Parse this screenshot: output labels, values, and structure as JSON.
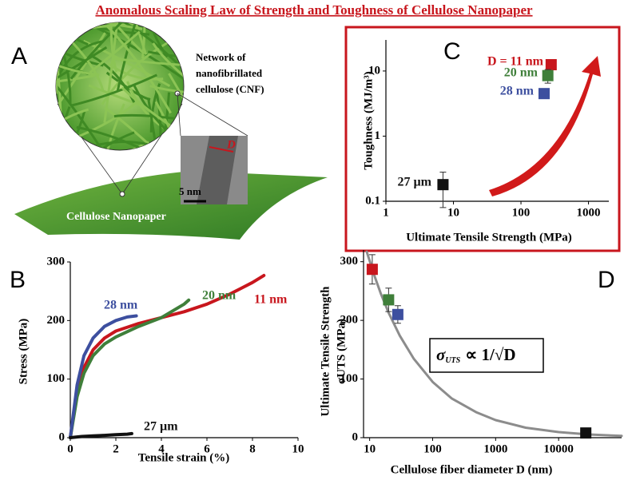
{
  "title": "Anomalous Scaling Law of Strength and Toughness of Cellulose Nanopaper",
  "panel_a": {
    "label": "A",
    "network": [
      "Network of",
      "nanofibrillated",
      "cellulose (CNF)"
    ],
    "tem_label": "D",
    "scale_bar": "5 nm",
    "sheet_label": "Cellulose Nanopaper"
  },
  "chart_data": [
    {
      "type": "scatter",
      "panel": "C",
      "xlabel": "Ultimate Tensile Strength (MPa)",
      "ylabel": "Toughness (MJ/m³)",
      "xscale": "log",
      "yscale": "log",
      "xlim": [
        1,
        2000
      ],
      "ylim": [
        0.1,
        30
      ],
      "xticks": [
        1,
        10,
        100,
        1000
      ],
      "yticks": [
        0.1,
        1,
        10
      ],
      "series": [
        {
          "name": "D = 11 nm",
          "color": "#c8161d",
          "x": [
            280
          ],
          "values": [
            12.5
          ]
        },
        {
          "name": "20 nm",
          "color": "#3f7f3a",
          "x": [
            250
          ],
          "values": [
            8.5
          ],
          "errors": [
            2
          ]
        },
        {
          "name": "28 nm",
          "color": "#3d4f9f",
          "x": [
            220
          ],
          "values": [
            4.5
          ]
        },
        {
          "name": "27 µm",
          "color": "#111111",
          "x": [
            7
          ],
          "values": [
            0.18
          ],
          "errors": [
            0.1
          ]
        }
      ]
    },
    {
      "type": "line",
      "panel": "B",
      "xlabel": "Tensile strain (%)",
      "ylabel": "Stress (MPa)",
      "xlim": [
        0,
        10
      ],
      "ylim": [
        0,
        300
      ],
      "xticks": [
        0,
        2,
        4,
        6,
        8,
        10
      ],
      "yticks": [
        0,
        100,
        200,
        300
      ],
      "series": [
        {
          "name": "11 nm",
          "color": "#c8161d",
          "x": [
            0,
            0.3,
            0.6,
            1,
            1.5,
            2,
            3,
            4,
            5,
            6,
            7,
            7.5,
            8,
            8.5
          ],
          "values": [
            0,
            80,
            120,
            150,
            170,
            182,
            195,
            205,
            215,
            228,
            245,
            255,
            265,
            277
          ]
        },
        {
          "name": "20 nm",
          "color": "#3f7f3a",
          "x": [
            0,
            0.3,
            0.6,
            1,
            1.5,
            2,
            3,
            4,
            5,
            5.2
          ],
          "values": [
            0,
            70,
            110,
            140,
            160,
            172,
            190,
            205,
            228,
            235
          ]
        },
        {
          "name": "28 nm",
          "color": "#3d4f9f",
          "x": [
            0,
            0.3,
            0.6,
            1,
            1.5,
            2,
            2.5,
            2.9
          ],
          "values": [
            0,
            90,
            140,
            170,
            190,
            200,
            206,
            208
          ]
        },
        {
          "name": "27 µm",
          "color": "#111111",
          "x": [
            0,
            0.5,
            1,
            1.5,
            2,
            2.5,
            2.7
          ],
          "values": [
            0,
            2,
            3,
            4,
            5,
            6,
            7
          ]
        }
      ]
    },
    {
      "type": "scatter",
      "panel": "D",
      "xlabel": "Cellulose fiber diameter D (nm)",
      "ylabel": [
        "Ultimate Tensile Strength",
        "σUTS (MPa)"
      ],
      "xscale": "log",
      "xlim": [
        8,
        100000
      ],
      "ylim": [
        0,
        320
      ],
      "xticks": [
        10,
        100,
        1000,
        10000
      ],
      "yticks": [
        0,
        100,
        200,
        300
      ],
      "formula": [
        "σ",
        "UTS",
        "∝ 1/√D"
      ],
      "series": [
        {
          "color": "#c8161d",
          "x": [
            11
          ],
          "values": [
            287
          ],
          "errors": [
            25
          ]
        },
        {
          "color": "#3f7f3a",
          "x": [
            20
          ],
          "values": [
            235
          ],
          "errors": [
            20
          ]
        },
        {
          "color": "#3d4f9f",
          "x": [
            28
          ],
          "values": [
            210
          ],
          "errors": [
            15
          ]
        },
        {
          "color": "#111111",
          "x": [
            27000
          ],
          "values": [
            8
          ],
          "errors": [
            5
          ]
        }
      ],
      "fit": {
        "color": "#8c8c8c",
        "x": [
          9,
          12,
          15,
          20,
          30,
          50,
          100,
          200,
          500,
          1000,
          3000,
          10000,
          30000,
          100000
        ],
        "values": [
          317,
          275,
          246,
          213,
          174,
          135,
          95,
          67,
          43,
          30,
          17,
          9.5,
          5.5,
          3.0
        ]
      }
    }
  ]
}
